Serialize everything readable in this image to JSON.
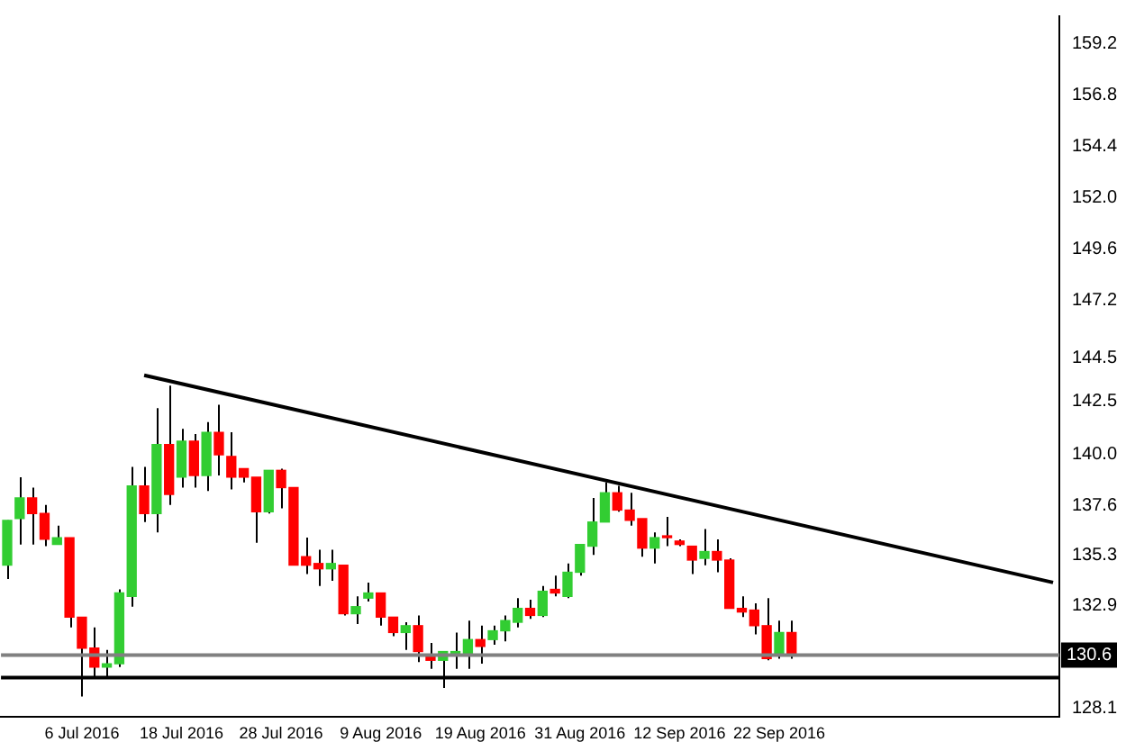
{
  "chart_data": {
    "type": "candlestick",
    "categories": [
      null,
      null,
      null,
      null,
      null,
      null,
      "6 Jul 2016",
      null,
      null,
      null,
      null,
      null,
      null,
      null,
      "18 Jul 2016",
      null,
      null,
      null,
      null,
      null,
      null,
      null,
      "28 Jul 2016",
      null,
      null,
      null,
      null,
      null,
      null,
      null,
      "9 Aug 2016",
      null,
      null,
      null,
      null,
      null,
      null,
      null,
      "19 Aug 2016",
      null,
      null,
      null,
      null,
      null,
      null,
      null,
      "31 Aug 2016",
      null,
      null,
      null,
      null,
      null,
      null,
      null,
      "12 Sep 2016",
      null,
      null,
      null,
      null,
      null,
      null,
      null,
      "22 Sep 2016",
      null,
      null,
      null,
      null,
      null,
      null,
      null,
      null,
      null,
      null,
      null,
      null,
      null,
      null,
      null,
      null,
      null,
      null,
      null,
      null,
      null,
      null
    ],
    "ohlc": [
      [
        134.81,
        136.91,
        134.16,
        136.91
      ],
      [
        136.99,
        138.93,
        135.78,
        137.96
      ],
      [
        137.96,
        138.44,
        135.78,
        137.23
      ],
      [
        137.23,
        137.63,
        135.7,
        136.02
      ],
      [
        135.78,
        136.66,
        135.78,
        136.1
      ],
      [
        136.1,
        136.1,
        131.9,
        132.38
      ],
      [
        132.38,
        132.38,
        128.67,
        130.93
      ],
      [
        130.93,
        131.9,
        129.55,
        130.04
      ],
      [
        130.04,
        130.85,
        129.55,
        130.2
      ],
      [
        130.2,
        133.68,
        130.04,
        133.51
      ],
      [
        133.35,
        139.41,
        132.87,
        138.52
      ],
      [
        138.52,
        139.41,
        136.83,
        137.23
      ],
      [
        137.23,
        142.16,
        136.34,
        140.46
      ],
      [
        140.46,
        143.21,
        137.63,
        138.12
      ],
      [
        138.93,
        141.19,
        138.44,
        140.62
      ],
      [
        140.62,
        140.95,
        138.44,
        139.01
      ],
      [
        139.01,
        141.51,
        138.28,
        141.03
      ],
      [
        141.03,
        142.32,
        139.01,
        139.98
      ],
      [
        139.9,
        141.03,
        138.36,
        138.93
      ],
      [
        139.33,
        139.33,
        138.68,
        138.93
      ],
      [
        138.93,
        138.93,
        135.86,
        137.31
      ],
      [
        137.31,
        139.25,
        137.23,
        139.25
      ],
      [
        139.25,
        139.33,
        137.47,
        138.44
      ],
      [
        138.44,
        138.44,
        134.81,
        134.81
      ],
      [
        135.21,
        136.1,
        134.4,
        134.81
      ],
      [
        134.89,
        135.53,
        133.84,
        134.64
      ],
      [
        134.64,
        135.53,
        134.08,
        134.89
      ],
      [
        134.81,
        134.81,
        132.46,
        132.54
      ],
      [
        132.54,
        133.35,
        132.06,
        132.87
      ],
      [
        133.27,
        134,
        133.11,
        133.51
      ],
      [
        133.51,
        133.51,
        131.98,
        132.38
      ],
      [
        132.38,
        132.38,
        131.49,
        131.66
      ],
      [
        131.66,
        132.14,
        130.85,
        131.98
      ],
      [
        131.98,
        132.46,
        130.28,
        130.77
      ],
      [
        130.6,
        131.17,
        129.96,
        130.36
      ],
      [
        130.36,
        130.77,
        129.07,
        130.77
      ],
      [
        130.6,
        131.66,
        129.96,
        130.77
      ],
      [
        130.69,
        132.22,
        129.96,
        131.33
      ],
      [
        131.33,
        131.98,
        130.2,
        131.01
      ],
      [
        131.33,
        131.98,
        131.09,
        131.74
      ],
      [
        131.74,
        132.46,
        131.25,
        132.22
      ],
      [
        132.14,
        133.27,
        131.9,
        132.79
      ],
      [
        132.79,
        133.19,
        132.3,
        132.46
      ],
      [
        132.46,
        133.84,
        132.38,
        133.59
      ],
      [
        133.68,
        134.32,
        133.35,
        133.51
      ],
      [
        133.35,
        134.89,
        133.27,
        134.48
      ],
      [
        134.48,
        135.78,
        134.32,
        135.78
      ],
      [
        135.7,
        137.96,
        135.29,
        136.83
      ],
      [
        136.83,
        138.68,
        136.83,
        138.2
      ],
      [
        138.2,
        138.52,
        137.31,
        137.39
      ],
      [
        137.39,
        138.2,
        136.66,
        136.91
      ],
      [
        136.99,
        136.99,
        135.21,
        135.61
      ],
      [
        135.61,
        136.34,
        134.89,
        136.1
      ],
      [
        136.18,
        137.07,
        135.7,
        136.1
      ],
      [
        135.94,
        136.02,
        135.7,
        135.78
      ],
      [
        135.7,
        135.7,
        134.4,
        135.05
      ],
      [
        135.13,
        136.5,
        134.81,
        135.45
      ],
      [
        135.45,
        136.02,
        134.48,
        135.05
      ],
      [
        135.05,
        135.13,
        132.79,
        132.79
      ],
      [
        132.79,
        133.35,
        132.38,
        132.62
      ],
      [
        132.71,
        133.03,
        131.57,
        131.98
      ],
      [
        131.98,
        133.27,
        130.36,
        130.44
      ],
      [
        130.6,
        132.22,
        130.44,
        131.66
      ],
      [
        131.66,
        132.22,
        130.44,
        130.6
      ],
      null,
      null,
      null,
      null,
      null,
      null,
      null,
      null,
      null,
      null,
      null,
      null,
      null,
      null,
      null,
      null,
      null,
      null,
      null,
      null,
      null
    ],
    "colors": [
      "#32cd32",
      "#32cd32",
      "#ff0000",
      "#ff0000",
      "#32cd32",
      "#ff0000",
      "#ff0000",
      "#ff0000",
      "#32cd32",
      "#32cd32",
      "#32cd32",
      "#ff0000",
      "#32cd32",
      "#ff0000",
      "#32cd32",
      "#ff0000",
      "#32cd32",
      "#ff0000",
      "#ff0000",
      "#ff0000",
      "#ff0000",
      "#32cd32",
      "#ff0000",
      "#ff0000",
      "#ff0000",
      "#ff0000",
      "#32cd32",
      "#ff0000",
      "#32cd32",
      "#32cd32",
      "#ff0000",
      "#ff0000",
      "#32cd32",
      "#ff0000",
      "#ff0000",
      "#32cd32",
      "#32cd32",
      "#32cd32",
      "#ff0000",
      "#32cd32",
      "#32cd32",
      "#32cd32",
      "#ff0000",
      "#32cd32",
      "#ff0000",
      "#32cd32",
      "#32cd32",
      "#32cd32",
      "#32cd32",
      "#ff0000",
      "#ff0000",
      "#ff0000",
      "#32cd32",
      "#ff0000",
      "#ff0000",
      "#ff0000",
      "#32cd32",
      "#ff0000",
      "#ff0000",
      "#ff0000",
      "#ff0000",
      "#ff0000",
      "#32cd32",
      "#ff0000",
      null,
      null,
      null,
      null,
      null,
      null,
      null,
      null,
      null,
      null,
      null,
      null,
      null,
      null,
      null,
      null,
      null,
      null,
      null,
      null,
      null
    ],
    "series": [
      {
        "type": "line",
        "color": "#000000",
        "values": [
          null,
          null,
          null,
          null,
          null,
          null,
          null,
          null,
          null,
          null,
          null,
          143.7,
          null,
          null,
          null,
          null,
          null,
          null,
          null,
          null,
          null,
          null,
          null,
          null,
          null,
          null,
          null,
          null,
          null,
          null,
          null,
          null,
          null,
          null,
          null,
          null,
          null,
          null,
          null,
          null,
          null,
          null,
          null,
          null,
          null,
          null,
          null,
          null,
          null,
          null,
          null,
          null,
          null,
          null,
          null,
          null,
          null,
          null,
          null,
          null,
          null,
          null,
          null,
          null,
          null,
          null,
          null,
          null,
          null,
          null,
          null,
          null,
          null,
          null,
          null,
          null,
          null,
          null,
          null,
          null,
          null,
          null,
          null,
          null,
          134.0
        ]
      }
    ],
    "marker": "none",
    "ylim": [
      127.7,
      160.5
    ],
    "yticks": [
      128.1,
      132.9,
      135.3,
      137.6,
      {
        "value": 140,
        "label": "140.0"
      },
      142.5,
      144.5,
      147.2,
      149.6,
      {
        "value": 152,
        "label": "152.0"
      },
      154.4,
      156.8,
      159.2
    ],
    "ref_lines": [
      {
        "axis": "y",
        "value": 130.6,
        "label": "130.6",
        "color": "#808080"
      },
      {
        "axis": "y",
        "value": 129.55,
        "color": "#000000"
      }
    ],
    "grid": false,
    "legend": false
  }
}
